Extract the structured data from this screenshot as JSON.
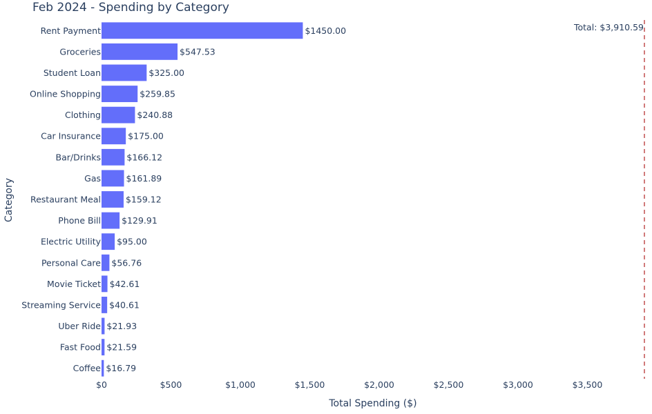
{
  "chart_data": {
    "type": "bar",
    "orientation": "horizontal",
    "title": "Feb 2024 - Spending by Category",
    "xlabel": "Total Spending ($)",
    "ylabel": "Category",
    "xlim": [
      0,
      3910.59
    ],
    "x_ticks": [
      {
        "value": 0,
        "label": "$0"
      },
      {
        "value": 500,
        "label": "$500"
      },
      {
        "value": 1000,
        "label": "$1,000"
      },
      {
        "value": 1500,
        "label": "$1,500"
      },
      {
        "value": 2000,
        "label": "$2,000"
      },
      {
        "value": 2500,
        "label": "$2,500"
      },
      {
        "value": 3000,
        "label": "$3,000"
      },
      {
        "value": 3500,
        "label": "$3,500"
      }
    ],
    "grid": false,
    "bar_color": "#636efa",
    "categories": [
      "Rent Payment",
      "Groceries",
      "Student Loan",
      "Online Shopping",
      "Clothing",
      "Car Insurance",
      "Bar/Drinks",
      "Gas",
      "Restaurant Meal",
      "Phone Bill",
      "Electric Utility",
      "Personal Care",
      "Movie Ticket",
      "Streaming Service",
      "Uber Ride",
      "Fast Food",
      "Coffee"
    ],
    "values": [
      1450.0,
      547.53,
      325.0,
      259.85,
      240.88,
      175.0,
      166.12,
      161.89,
      159.12,
      129.91,
      95.0,
      56.76,
      42.61,
      40.61,
      21.93,
      21.59,
      16.79
    ],
    "value_labels": [
      "$1450.00",
      "$547.53",
      "$325.00",
      "$259.85",
      "$240.88",
      "$175.00",
      "$166.12",
      "$161.89",
      "$159.12",
      "$129.91",
      "$95.00",
      "$56.76",
      "$42.61",
      "$40.61",
      "$21.93",
      "$21.59",
      "$16.79"
    ],
    "reference_line": {
      "value": 3910.59,
      "label": "Total: $3,910.59",
      "color": "#b22222",
      "style": "dashed"
    }
  }
}
